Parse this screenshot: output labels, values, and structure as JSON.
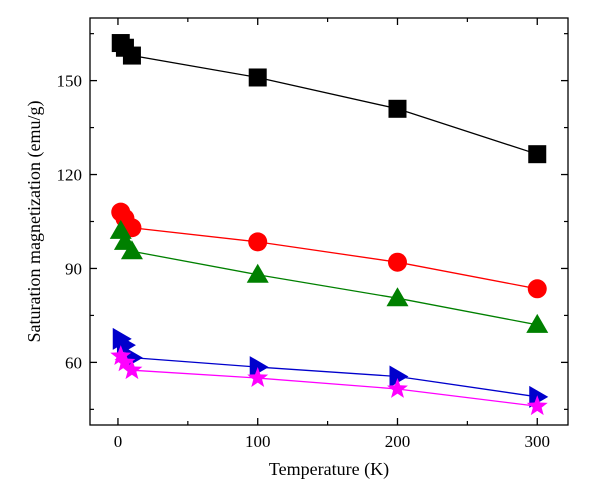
{
  "chart_data": {
    "type": "line",
    "xlabel": "Temperature (K)",
    "ylabel": "Saturation magnetization (emu/g)",
    "xlim": [
      -20,
      322
    ],
    "ylim": [
      40,
      170
    ],
    "xticks": [
      0,
      100,
      200,
      300
    ],
    "yticks": [
      60,
      90,
      120,
      150
    ],
    "grid": false,
    "series": [
      {
        "marker": "square",
        "color": "#000000",
        "x": [
          2,
          5,
          10,
          100,
          200,
          300
        ],
        "y": [
          162.0,
          160.5,
          158.0,
          151.0,
          141.0,
          126.5
        ]
      },
      {
        "marker": "circle",
        "color": "#ff0000",
        "x": [
          2,
          5,
          10,
          100,
          200,
          300
        ],
        "y": [
          108.0,
          106.0,
          103.0,
          98.5,
          92.0,
          83.5
        ]
      },
      {
        "marker": "triangle-up",
        "color": "#008000",
        "x": [
          2,
          5,
          10,
          100,
          200,
          300
        ],
        "y": [
          102.0,
          98.5,
          95.5,
          88.0,
          80.5,
          72.0
        ]
      },
      {
        "marker": "triangle-right",
        "color": "#0000cc",
        "x": [
          2,
          5,
          10,
          100,
          200,
          300
        ],
        "y": [
          67.5,
          65.5,
          61.5,
          58.5,
          55.5,
          49.0
        ]
      },
      {
        "marker": "star",
        "color": "#ff00ff",
        "x": [
          2,
          5,
          10,
          100,
          200,
          300
        ],
        "y": [
          62.0,
          60.0,
          57.5,
          55.0,
          51.5,
          46.0
        ]
      }
    ]
  }
}
